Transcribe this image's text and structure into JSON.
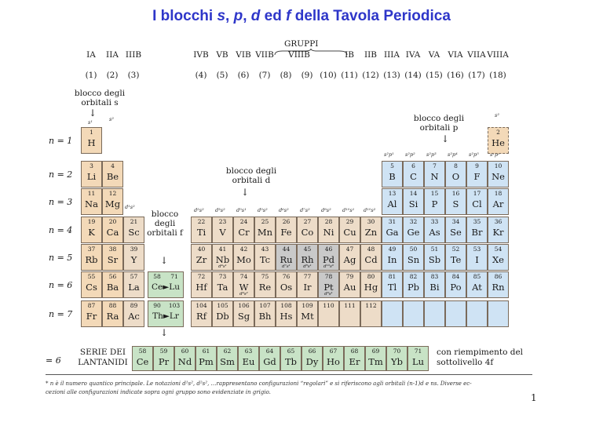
{
  "title": {
    "prefix": "I blocchi ",
    "s": "s",
    ", ": ", ",
    "p": "p",
    "d": "d",
    "ed": " ed ",
    "f": "f",
    "suffix": " della Tavola Periodica"
  },
  "gruppi_label": "GRUPPI",
  "group_labels": [
    "IA",
    "IIA",
    "IIIB",
    "IVB",
    "VB",
    "VIB",
    "VIIB",
    "VIIIB",
    "IB",
    "IIB",
    "IIIA",
    "IVA",
    "VA",
    "VIA",
    "VIIA",
    "VIIIA"
  ],
  "group_numbers": [
    "(1)",
    "(2)",
    "(3)",
    "(4)",
    "(5)",
    "(6)",
    "(7)",
    "(8)",
    "(9)",
    "(10)",
    "(11)",
    "(12)",
    "(13)",
    "(14)",
    "(15)",
    "(16)",
    "(17)",
    "(18)"
  ],
  "block_labels": {
    "s": "blocco degli orbitali s",
    "p": "blocco degli orbitali p",
    "d": "blocco degli orbitali d",
    "f": "blocco degli orbitali f"
  },
  "period_labels": [
    "n = 1",
    "n = 2",
    "n = 3",
    "n = 4",
    "n = 5",
    "n = 6",
    "n = 7"
  ],
  "lanthanide_n": "= 6",
  "lanthanide_label": "SERIE DEI LANTANIDI",
  "lanthanide_note": "con riempimento del sottolivello 4f",
  "footnote_line1": "* n è il numero quantico principale. Le notazioni d¹s², d²s², …rappresentano configurazioni “regolari” e si riferiscono agli orbitali (n-1)d e ns. Diverse ec-",
  "footnote_line2": "cezioni alle configurazioni indicate sopra ogni gruppo sono evidenziate in grigio.",
  "page_number": "1",
  "config_headers": {
    "s": [
      "s¹",
      "s²"
    ],
    "d": [
      "d¹s²",
      "d²s²",
      "d³s²",
      "d⁵s¹",
      "d⁵s²",
      "d⁶s²",
      "d⁷s²",
      "d⁸s²",
      "d¹⁰s¹",
      "d¹⁰s²"
    ],
    "p": [
      "s²p¹",
      "s²p²",
      "s²p³",
      "s²p⁴",
      "s²p⁵",
      "s²p⁶"
    ],
    "he": "s²"
  },
  "colors": {
    "s_block": "#f3d9b8",
    "p_block": "#cfe3f4",
    "d_block": "#eddcc8",
    "f_block": "#c8e3c6",
    "exception": "#c9c9c9",
    "title": "#2e36c9"
  },
  "cells": [
    {
      "col": 1,
      "row": 1,
      "z": "1",
      "sym": "H",
      "blk": "s"
    },
    {
      "col": 18,
      "row": 1,
      "z": "2",
      "sym": "He",
      "blk": "he"
    },
    {
      "col": 1,
      "row": 2,
      "z": "3",
      "sym": "Li",
      "blk": "s"
    },
    {
      "col": 2,
      "row": 2,
      "z": "4",
      "sym": "Be",
      "blk": "s"
    },
    {
      "col": 13,
      "row": 2,
      "z": "5",
      "sym": "B",
      "blk": "p"
    },
    {
      "col": 14,
      "row": 2,
      "z": "6",
      "sym": "C",
      "blk": "p"
    },
    {
      "col": 15,
      "row": 2,
      "z": "7",
      "sym": "N",
      "blk": "p"
    },
    {
      "col": 16,
      "row": 2,
      "z": "8",
      "sym": "O",
      "blk": "p"
    },
    {
      "col": 17,
      "row": 2,
      "z": "9",
      "sym": "F",
      "blk": "p"
    },
    {
      "col": 18,
      "row": 2,
      "z": "10",
      "sym": "Ne",
      "blk": "p"
    },
    {
      "col": 1,
      "row": 3,
      "z": "11",
      "sym": "Na",
      "blk": "s"
    },
    {
      "col": 2,
      "row": 3,
      "z": "12",
      "sym": "Mg",
      "blk": "s"
    },
    {
      "col": 13,
      "row": 3,
      "z": "13",
      "sym": "Al",
      "blk": "p"
    },
    {
      "col": 14,
      "row": 3,
      "z": "14",
      "sym": "Si",
      "blk": "p"
    },
    {
      "col": 15,
      "row": 3,
      "z": "15",
      "sym": "P",
      "blk": "p"
    },
    {
      "col": 16,
      "row": 3,
      "z": "16",
      "sym": "S",
      "blk": "p"
    },
    {
      "col": 17,
      "row": 3,
      "z": "17",
      "sym": "Cl",
      "blk": "p"
    },
    {
      "col": 18,
      "row": 3,
      "z": "18",
      "sym": "Ar",
      "blk": "p"
    },
    {
      "col": 1,
      "row": 4,
      "z": "19",
      "sym": "K",
      "blk": "s"
    },
    {
      "col": 2,
      "row": 4,
      "z": "20",
      "sym": "Ca",
      "blk": "s"
    },
    {
      "col": 3,
      "row": 4,
      "z": "21",
      "sym": "Sc",
      "blk": "d"
    },
    {
      "col": 4,
      "row": 4,
      "z": "22",
      "sym": "Ti",
      "blk": "d"
    },
    {
      "col": 5,
      "row": 4,
      "z": "23",
      "sym": "V",
      "blk": "d"
    },
    {
      "col": 6,
      "row": 4,
      "z": "24",
      "sym": "Cr",
      "blk": "d"
    },
    {
      "col": 7,
      "row": 4,
      "z": "25",
      "sym": "Mn",
      "blk": "d"
    },
    {
      "col": 8,
      "row": 4,
      "z": "26",
      "sym": "Fe",
      "blk": "d"
    },
    {
      "col": 9,
      "row": 4,
      "z": "27",
      "sym": "Co",
      "blk": "d"
    },
    {
      "col": 10,
      "row": 4,
      "z": "28",
      "sym": "Ni",
      "blk": "d"
    },
    {
      "col": 11,
      "row": 4,
      "z": "29",
      "sym": "Cu",
      "blk": "d"
    },
    {
      "col": 12,
      "row": 4,
      "z": "30",
      "sym": "Zn",
      "blk": "d"
    },
    {
      "col": 13,
      "row": 4,
      "z": "31",
      "sym": "Ga",
      "blk": "p"
    },
    {
      "col": 14,
      "row": 4,
      "z": "32",
      "sym": "Ge",
      "blk": "p"
    },
    {
      "col": 15,
      "row": 4,
      "z": "33",
      "sym": "As",
      "blk": "p"
    },
    {
      "col": 16,
      "row": 4,
      "z": "34",
      "sym": "Se",
      "blk": "p"
    },
    {
      "col": 17,
      "row": 4,
      "z": "35",
      "sym": "Br",
      "blk": "p"
    },
    {
      "col": 18,
      "row": 4,
      "z": "36",
      "sym": "Kr",
      "blk": "p"
    },
    {
      "col": 1,
      "row": 5,
      "z": "37",
      "sym": "Rb",
      "blk": "s"
    },
    {
      "col": 2,
      "row": 5,
      "z": "38",
      "sym": "Sr",
      "blk": "s"
    },
    {
      "col": 3,
      "row": 5,
      "z": "39",
      "sym": "Y",
      "blk": "d"
    },
    {
      "col": 4,
      "row": 5,
      "z": "40",
      "sym": "Zr",
      "blk": "d"
    },
    {
      "col": 5,
      "row": 5,
      "z": "41",
      "sym": "Nb",
      "blk": "d",
      "conf": "d⁴s¹"
    },
    {
      "col": 6,
      "row": 5,
      "z": "42",
      "sym": "Mo",
      "blk": "d"
    },
    {
      "col": 7,
      "row": 5,
      "z": "43",
      "sym": "Tc",
      "blk": "d"
    },
    {
      "col": 8,
      "row": 5,
      "z": "44",
      "sym": "Ru",
      "blk": "gray",
      "conf": "d⁷s¹"
    },
    {
      "col": 9,
      "row": 5,
      "z": "45",
      "sym": "Rh",
      "blk": "gray",
      "conf": "d⁸s¹"
    },
    {
      "col": 10,
      "row": 5,
      "z": "46",
      "sym": "Pd",
      "blk": "gray",
      "conf": "d¹⁰s⁰"
    },
    {
      "col": 11,
      "row": 5,
      "z": "47",
      "sym": "Ag",
      "blk": "d"
    },
    {
      "col": 12,
      "row": 5,
      "z": "48",
      "sym": "Cd",
      "blk": "d"
    },
    {
      "col": 13,
      "row": 5,
      "z": "49",
      "sym": "In",
      "blk": "p"
    },
    {
      "col": 14,
      "row": 5,
      "z": "50",
      "sym": "Sn",
      "blk": "p"
    },
    {
      "col": 15,
      "row": 5,
      "z": "51",
      "sym": "Sb",
      "blk": "p"
    },
    {
      "col": 16,
      "row": 5,
      "z": "52",
      "sym": "Te",
      "blk": "p"
    },
    {
      "col": 17,
      "row": 5,
      "z": "53",
      "sym": "I",
      "blk": "p"
    },
    {
      "col": 18,
      "row": 5,
      "z": "54",
      "sym": "Xe",
      "blk": "p"
    },
    {
      "col": 1,
      "row": 6,
      "z": "55",
      "sym": "Cs",
      "blk": "s"
    },
    {
      "col": 2,
      "row": 6,
      "z": "56",
      "sym": "Ba",
      "blk": "s"
    },
    {
      "col": 3,
      "row": 6,
      "z": "57",
      "sym": "La",
      "blk": "d"
    },
    {
      "col": 4,
      "row": 6,
      "z": "72",
      "sym": "Hf",
      "blk": "d"
    },
    {
      "col": 5,
      "row": 6,
      "z": "73",
      "sym": "Ta",
      "blk": "d"
    },
    {
      "col": 6,
      "row": 6,
      "z": "74",
      "sym": "W",
      "blk": "d",
      "conf": "d⁴s²"
    },
    {
      "col": 7,
      "row": 6,
      "z": "75",
      "sym": "Re",
      "blk": "d"
    },
    {
      "col": 8,
      "row": 6,
      "z": "76",
      "sym": "Os",
      "blk": "d"
    },
    {
      "col": 9,
      "row": 6,
      "z": "77",
      "sym": "Ir",
      "blk": "d"
    },
    {
      "col": 10,
      "row": 6,
      "z": "78",
      "sym": "Pt",
      "blk": "gray",
      "conf": "d⁹s¹"
    },
    {
      "col": 11,
      "row": 6,
      "z": "79",
      "sym": "Au",
      "blk": "d"
    },
    {
      "col": 12,
      "row": 6,
      "z": "80",
      "sym": "Hg",
      "blk": "d"
    },
    {
      "col": 13,
      "row": 6,
      "z": "81",
      "sym": "Tl",
      "blk": "p"
    },
    {
      "col": 14,
      "row": 6,
      "z": "82",
      "sym": "Pb",
      "blk": "p"
    },
    {
      "col": 15,
      "row": 6,
      "z": "83",
      "sym": "Bi",
      "blk": "p"
    },
    {
      "col": 16,
      "row": 6,
      "z": "84",
      "sym": "Po",
      "blk": "p"
    },
    {
      "col": 17,
      "row": 6,
      "z": "85",
      "sym": "At",
      "blk": "p"
    },
    {
      "col": 18,
      "row": 6,
      "z": "86",
      "sym": "Rn",
      "blk": "p"
    },
    {
      "col": 1,
      "row": 7,
      "z": "87",
      "sym": "Fr",
      "blk": "s"
    },
    {
      "col": 2,
      "row": 7,
      "z": "88",
      "sym": "Ra",
      "blk": "s"
    },
    {
      "col": 3,
      "row": 7,
      "z": "89",
      "sym": "Ac",
      "blk": "d"
    },
    {
      "col": 4,
      "row": 7,
      "z": "104",
      "sym": "Rf",
      "blk": "d"
    },
    {
      "col": 5,
      "row": 7,
      "z": "105",
      "sym": "Db",
      "blk": "d"
    },
    {
      "col": 6,
      "row": 7,
      "z": "106",
      "sym": "Sg",
      "blk": "d"
    },
    {
      "col": 7,
      "row": 7,
      "z": "107",
      "sym": "Bh",
      "blk": "d"
    },
    {
      "col": 8,
      "row": 7,
      "z": "108",
      "sym": "Hs",
      "blk": "d"
    },
    {
      "col": 9,
      "row": 7,
      "z": "109",
      "sym": "Mt",
      "blk": "d"
    },
    {
      "col": 10,
      "row": 7,
      "z": "110",
      "sym": "",
      "blk": "d"
    },
    {
      "col": 11,
      "row": 7,
      "z": "111",
      "sym": "",
      "blk": "d"
    },
    {
      "col": 12,
      "row": 7,
      "z": "112",
      "sym": "",
      "blk": "d"
    },
    {
      "col": 13,
      "row": 7,
      "z": "",
      "sym": "",
      "blk": "p"
    },
    {
      "col": 14,
      "row": 7,
      "z": "",
      "sym": "",
      "blk": "p"
    },
    {
      "col": 15,
      "row": 7,
      "z": "",
      "sym": "",
      "blk": "p"
    },
    {
      "col": 16,
      "row": 7,
      "z": "",
      "sym": "",
      "blk": "p"
    },
    {
      "col": 17,
      "row": 7,
      "z": "",
      "sym": "",
      "blk": "p"
    },
    {
      "col": 18,
      "row": 7,
      "z": "",
      "sym": "",
      "blk": "p"
    }
  ],
  "f_inline": [
    {
      "row": 6,
      "z1": "58",
      "z2": "71",
      "label": "Ce►Lu"
    },
    {
      "row": 7,
      "z1": "90",
      "z2": "103",
      "label": "Th►Lr"
    }
  ],
  "lanthanides": [
    {
      "z": "58",
      "sym": "Ce"
    },
    {
      "z": "59",
      "sym": "Pr"
    },
    {
      "z": "60",
      "sym": "Nd"
    },
    {
      "z": "61",
      "sym": "Pm"
    },
    {
      "z": "62",
      "sym": "Sm"
    },
    {
      "z": "63",
      "sym": "Eu"
    },
    {
      "z": "64",
      "sym": "Gd"
    },
    {
      "z": "65",
      "sym": "Tb"
    },
    {
      "z": "66",
      "sym": "Dy"
    },
    {
      "z": "67",
      "sym": "Ho"
    },
    {
      "z": "68",
      "sym": "Er"
    },
    {
      "z": "69",
      "sym": "Tm"
    },
    {
      "z": "70",
      "sym": "Yb"
    },
    {
      "z": "71",
      "sym": "Lu"
    }
  ]
}
